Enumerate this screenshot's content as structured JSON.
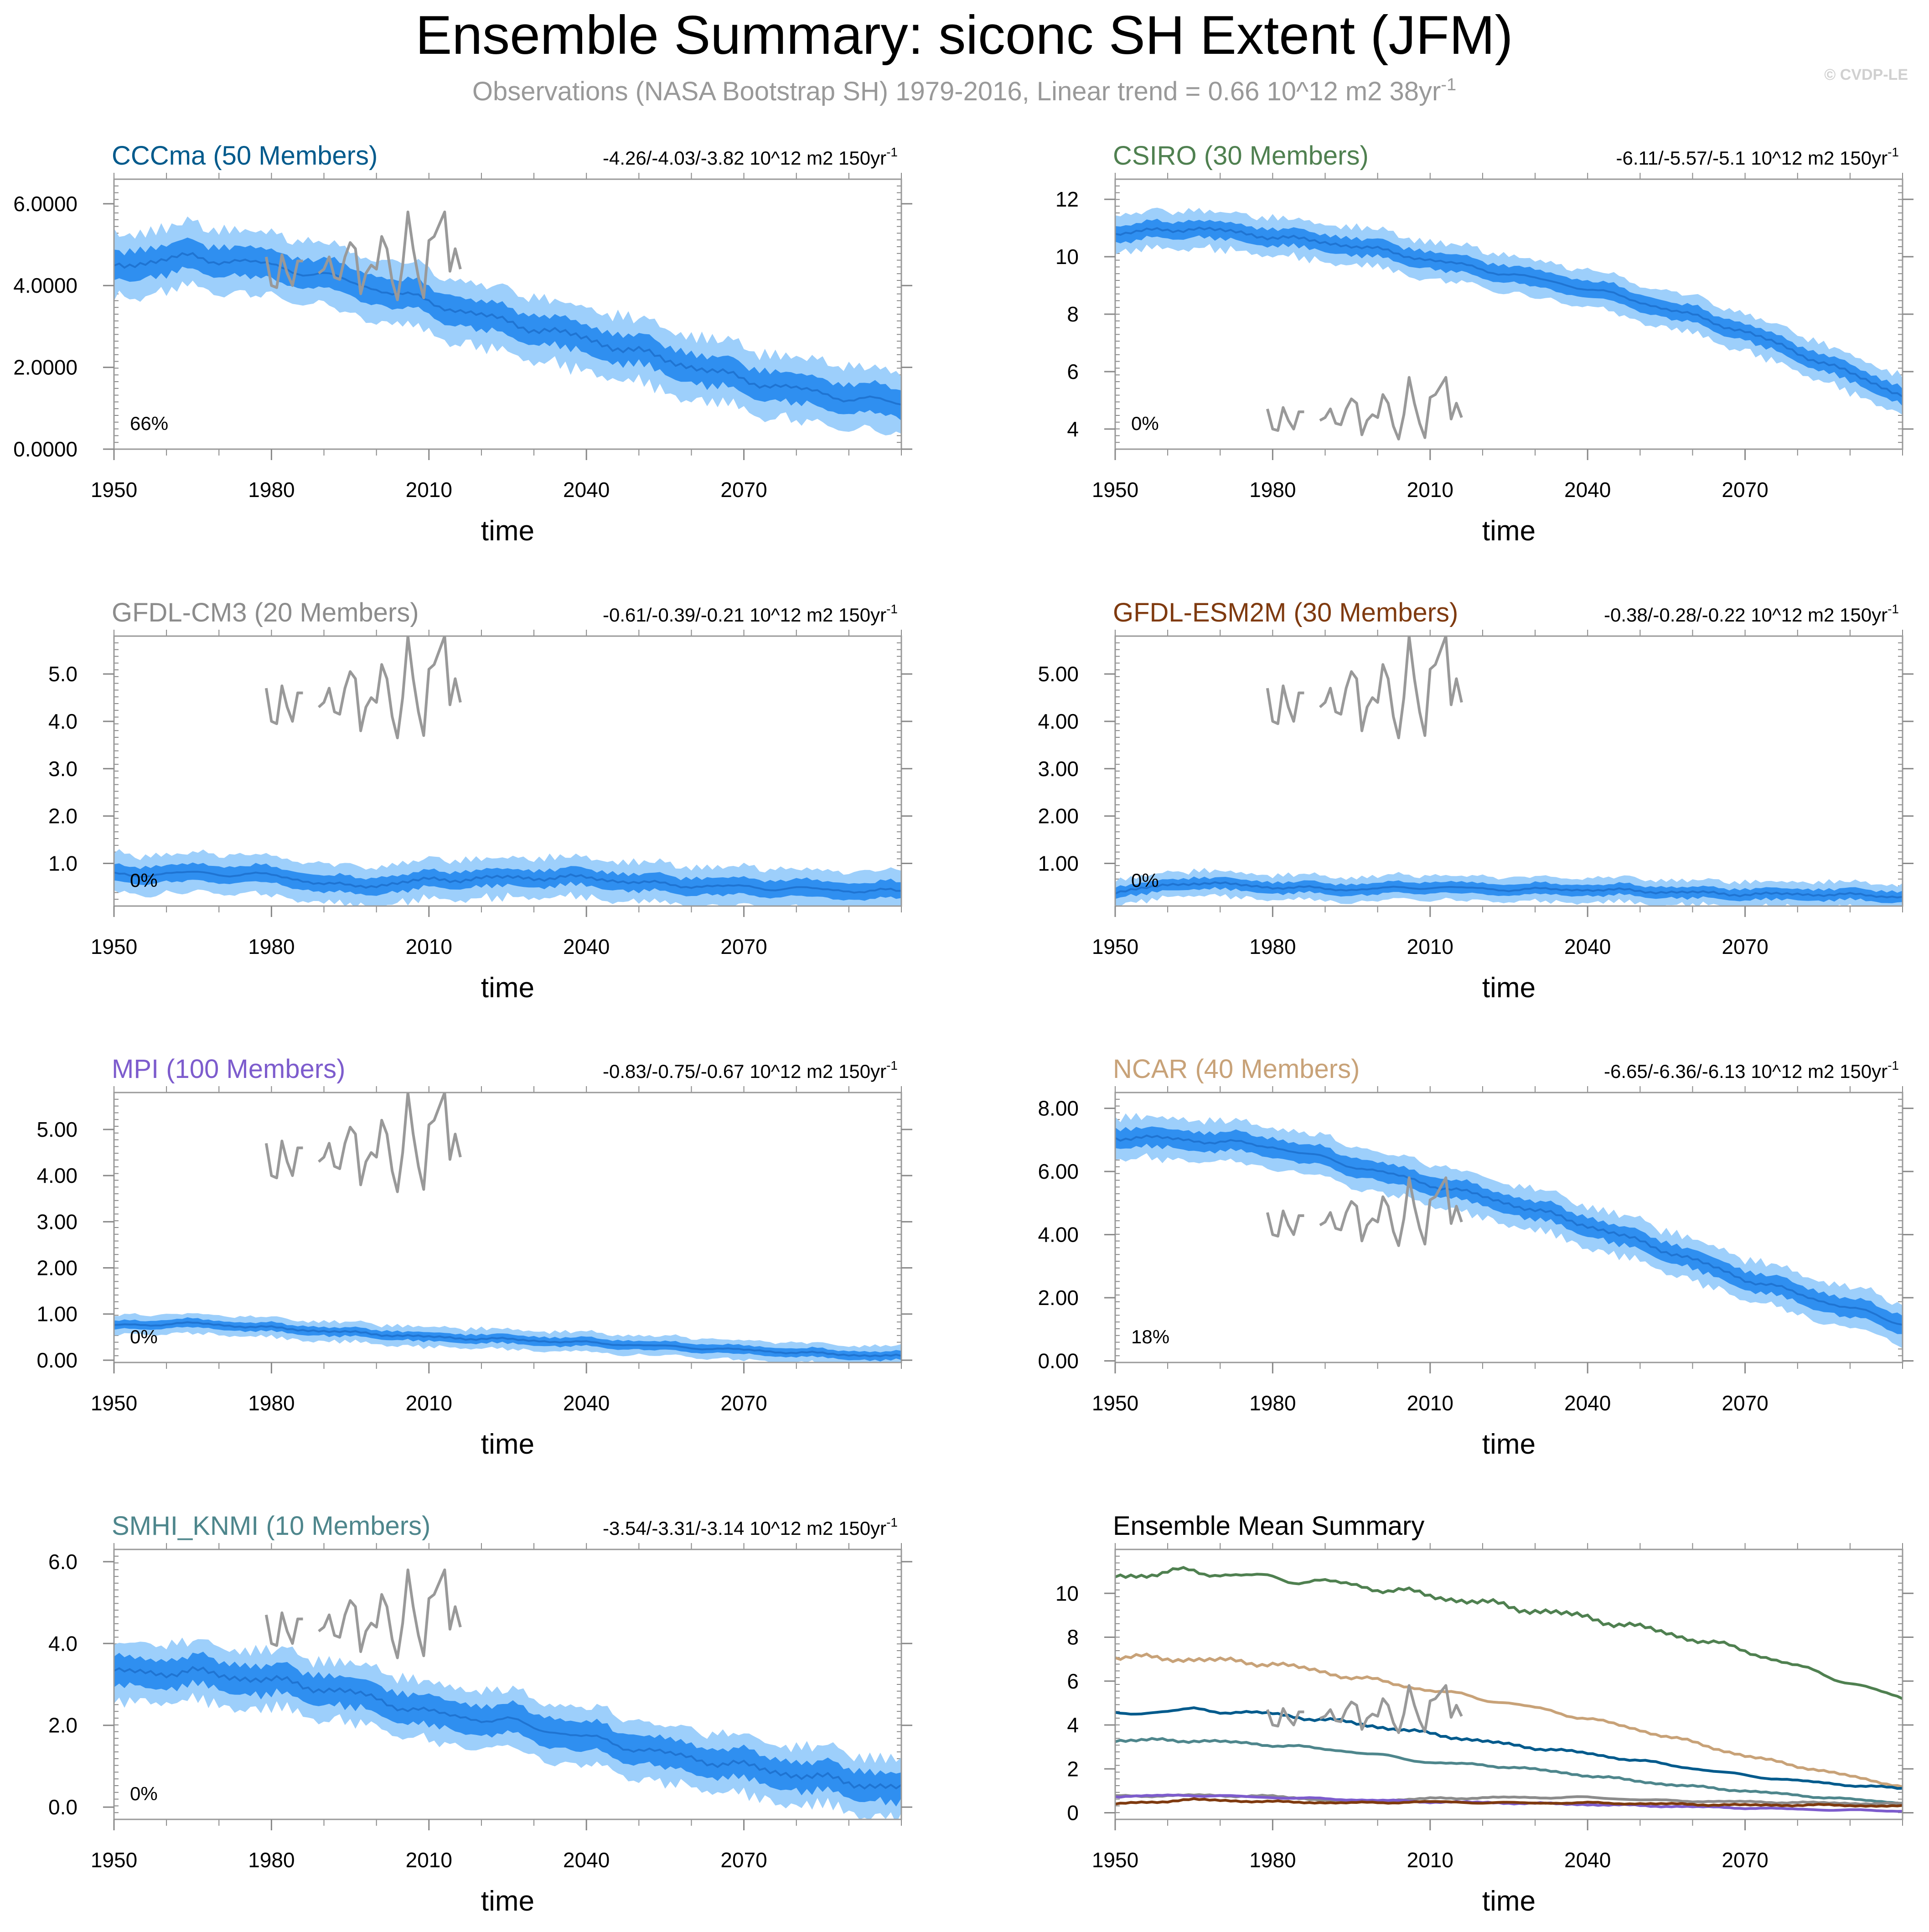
{
  "figure": {
    "title": "Ensemble Summary: siconc SH Extent (JFM)",
    "subtitle": "Observations (NASA Bootstrap SH) 1979-2016, Linear trend = 0.66 10^12 m2 38yr",
    "subtitle_sup": "-1",
    "watermark": "© CVDP-LE",
    "colors": {
      "title": "#000000",
      "subtitle": "#999999",
      "band_outer": "#9dcffb",
      "band_inner": "#2f8ff0",
      "mean_line": "#1f74d2",
      "obs_line": "#999999"
    }
  },
  "chart_data": [
    {
      "type": "area",
      "title": "CCCma (50 Members)",
      "title_color": "#005a8c",
      "trend": "-4.26/-4.03/-3.82 10^12 m2 150yr",
      "trend_sup": "-1",
      "xlabel": "time",
      "ylabel": "",
      "xlim": [
        1950,
        2100
      ],
      "ylim": [
        0,
        6.6
      ],
      "yticks": [
        0,
        2,
        4,
        6
      ],
      "ytick_labels": [
        "0.0000",
        "2.0000",
        "4.0000",
        "6.0000"
      ],
      "xticks": [
        1950,
        1980,
        2010,
        2040,
        2070
      ],
      "percent": "66%",
      "series": [
        {
          "name": "ensemble mean",
          "x": [
            1950,
            1965,
            1980,
            1995,
            2010,
            2025,
            2040,
            2055,
            2070,
            2085,
            2100
          ],
          "values": [
            4.5,
            4.7,
            4.5,
            4.1,
            3.6,
            3.1,
            2.7,
            2.2,
            1.7,
            1.35,
            1.1
          ]
        },
        {
          "name": "spread",
          "inner": 0.3,
          "outer": 0.65
        }
      ]
    },
    {
      "type": "area",
      "title": "CSIRO (30 Members)",
      "title_color": "#4f8050",
      "trend": "-6.11/-5.57/-5.1 10^12 m2 150yr",
      "trend_sup": "-1",
      "xlabel": "time",
      "ylabel": "",
      "xlim": [
        1950,
        2100
      ],
      "ylim": [
        3.3,
        12.7
      ],
      "yticks": [
        4,
        6,
        8,
        10,
        12
      ],
      "ytick_labels": [
        "4",
        "6",
        "8",
        "10",
        "12"
      ],
      "xticks": [
        1950,
        1980,
        2010,
        2040,
        2070
      ],
      "percent": "0%",
      "series": [
        {
          "name": "ensemble mean",
          "x": [
            1950,
            1965,
            1980,
            1995,
            2010,
            2025,
            2040,
            2055,
            2070,
            2085,
            2100
          ],
          "values": [
            10.8,
            11.0,
            10.7,
            10.4,
            9.9,
            9.4,
            8.9,
            8.2,
            7.4,
            6.3,
            5.2
          ]
        },
        {
          "name": "spread",
          "inner": 0.25,
          "outer": 0.55
        }
      ]
    },
    {
      "type": "area",
      "title": "GFDL-CM3 (20 Members)",
      "title_color": "#8c8c8c",
      "trend": "-0.61/-0.39/-0.21 10^12 m2 150yr",
      "trend_sup": "-1",
      "xlabel": "time",
      "ylabel": "",
      "xlim": [
        1950,
        2100
      ],
      "ylim": [
        0.1,
        5.8
      ],
      "yticks": [
        1,
        2,
        3,
        4,
        5
      ],
      "ytick_labels": [
        "1.0",
        "2.0",
        "3.0",
        "4.0",
        "5.0"
      ],
      "xticks": [
        1950,
        1980,
        2010,
        2040,
        2070
      ],
      "percent": "0%",
      "series": [
        {
          "name": "ensemble mean",
          "x": [
            1950,
            1965,
            1980,
            1995,
            2010,
            2025,
            2040,
            2055,
            2070,
            2085,
            2100
          ],
          "values": [
            0.75,
            0.8,
            0.75,
            0.5,
            0.65,
            0.7,
            0.7,
            0.55,
            0.5,
            0.45,
            0.4
          ]
        },
        {
          "name": "spread",
          "inner": 0.15,
          "outer": 0.35
        }
      ]
    },
    {
      "type": "area",
      "title": "GFDL-ESM2M (30 Members)",
      "title_color": "#7f3a0f",
      "trend": "-0.38/-0.28/-0.22 10^12 m2 150yr",
      "trend_sup": "-1",
      "xlabel": "time",
      "ylabel": "",
      "xlim": [
        1950,
        2100
      ],
      "ylim": [
        0.1,
        5.8
      ],
      "yticks": [
        1,
        2,
        3,
        4,
        5
      ],
      "ytick_labels": [
        "1.00",
        "2.00",
        "3.00",
        "4.00",
        "5.00"
      ],
      "xticks": [
        1950,
        1980,
        2010,
        2040,
        2070
      ],
      "percent": "0%",
      "series": [
        {
          "name": "ensemble mean",
          "x": [
            1950,
            1965,
            1980,
            1995,
            2010,
            2025,
            2040,
            2055,
            2070,
            2085,
            2100
          ],
          "values": [
            0.4,
            0.6,
            0.5,
            0.45,
            0.5,
            0.45,
            0.45,
            0.4,
            0.35,
            0.35,
            0.3
          ]
        },
        {
          "name": "spread",
          "inner": 0.1,
          "outer": 0.22
        }
      ]
    },
    {
      "type": "area",
      "title": "MPI (100 Members)",
      "title_color": "#7d5ccd",
      "trend": "-0.83/-0.75/-0.67 10^12 m2 150yr",
      "trend_sup": "-1",
      "xlabel": "time",
      "ylabel": "",
      "xlim": [
        1950,
        2100
      ],
      "ylim": [
        -0.05,
        5.8
      ],
      "yticks": [
        0,
        1,
        2,
        3,
        4,
        5
      ],
      "ytick_labels": [
        "0.00",
        "1.00",
        "2.00",
        "3.00",
        "4.00",
        "5.00"
      ],
      "xticks": [
        1950,
        1980,
        2010,
        2040,
        2070
      ],
      "percent": "0%",
      "series": [
        {
          "name": "ensemble mean",
          "x": [
            1950,
            1965,
            1980,
            1995,
            2010,
            2025,
            2040,
            2055,
            2070,
            2085,
            2100
          ],
          "values": [
            0.75,
            0.8,
            0.7,
            0.6,
            0.5,
            0.45,
            0.38,
            0.3,
            0.22,
            0.14,
            0.08
          ]
        },
        {
          "name": "spread",
          "inner": 0.08,
          "outer": 0.18
        }
      ]
    },
    {
      "type": "area",
      "title": "NCAR (40 Members)",
      "title_color": "#c8a278",
      "trend": "-6.65/-6.36/-6.13 10^12 m2 150yr",
      "trend_sup": "-1",
      "xlabel": "time",
      "ylabel": "",
      "xlim": [
        1950,
        2100
      ],
      "ylim": [
        -0.05,
        8.5
      ],
      "yticks": [
        0,
        2,
        4,
        6,
        8
      ],
      "ytick_labels": [
        "0.00",
        "2.00",
        "4.00",
        "6.00",
        "8.00"
      ],
      "xticks": [
        1950,
        1980,
        2010,
        2040,
        2070
      ],
      "percent": "18%",
      "series": [
        {
          "name": "ensemble mean",
          "x": [
            1950,
            1965,
            1980,
            1995,
            2010,
            2025,
            2040,
            2055,
            2070,
            2085,
            2100
          ],
          "values": [
            7.1,
            7.0,
            6.8,
            6.2,
            5.6,
            5.0,
            4.3,
            3.5,
            2.6,
            1.9,
            1.2
          ]
        },
        {
          "name": "spread",
          "inner": 0.25,
          "outer": 0.55
        }
      ]
    },
    {
      "type": "area",
      "title": "SMHI_KNMI (10 Members)",
      "title_color": "#4e868c",
      "trend": "-3.54/-3.31/-3.14 10^12 m2 150yr",
      "trend_sup": "-1",
      "xlabel": "time",
      "ylabel": "",
      "xlim": [
        1950,
        2100
      ],
      "ylim": [
        -0.3,
        6.3
      ],
      "yticks": [
        0,
        2,
        4,
        6
      ],
      "ytick_labels": [
        "0.0",
        "2.0",
        "4.0",
        "6.0"
      ],
      "xticks": [
        1950,
        1980,
        2010,
        2040,
        2070
      ],
      "percent": "0%",
      "series": [
        {
          "name": "ensemble mean",
          "x": [
            1950,
            1965,
            1980,
            1995,
            2010,
            2025,
            2040,
            2055,
            2070,
            2085,
            2100
          ],
          "values": [
            3.3,
            3.3,
            3.1,
            2.8,
            2.3,
            2.1,
            1.7,
            1.3,
            1.0,
            0.7,
            0.45
          ]
        },
        {
          "name": "spread",
          "inner": 0.3,
          "outer": 0.6
        }
      ]
    },
    {
      "type": "line",
      "title": "Ensemble Mean Summary",
      "title_color": "#000000",
      "xlabel": "time",
      "ylabel": "",
      "xlim": [
        1950,
        2100
      ],
      "ylim": [
        -0.3,
        12.0
      ],
      "yticks": [
        0,
        2,
        4,
        6,
        8,
        10
      ],
      "ytick_labels": [
        "0",
        "2",
        "4",
        "6",
        "8",
        "10"
      ],
      "xticks": [
        1950,
        1980,
        2010,
        2040,
        2070
      ],
      "series": [
        {
          "name": "CSIRO",
          "color": "#4f8050",
          "x": [
            1950,
            1965,
            1980,
            1995,
            2010,
            2025,
            2040,
            2055,
            2070,
            2085,
            2100
          ],
          "values": [
            10.8,
            11.0,
            10.7,
            10.4,
            9.9,
            9.4,
            8.9,
            8.2,
            7.4,
            6.3,
            5.2
          ]
        },
        {
          "name": "NCAR",
          "color": "#c8a278",
          "x": [
            1950,
            1965,
            1980,
            1995,
            2010,
            2025,
            2040,
            2055,
            2070,
            2085,
            2100
          ],
          "values": [
            7.1,
            7.0,
            6.8,
            6.2,
            5.6,
            5.0,
            4.3,
            3.5,
            2.6,
            1.9,
            1.2
          ]
        },
        {
          "name": "CCCma",
          "color": "#005a8c",
          "x": [
            1950,
            1965,
            1980,
            1995,
            2010,
            2025,
            2040,
            2055,
            2070,
            2085,
            2100
          ],
          "values": [
            4.5,
            4.7,
            4.5,
            4.1,
            3.6,
            3.1,
            2.7,
            2.2,
            1.7,
            1.35,
            1.1
          ]
        },
        {
          "name": "SMHI_KNMI",
          "color": "#4e868c",
          "x": [
            1950,
            1965,
            1980,
            1995,
            2010,
            2025,
            2040,
            2055,
            2070,
            2085,
            2100
          ],
          "values": [
            3.3,
            3.3,
            3.1,
            2.8,
            2.3,
            2.1,
            1.7,
            1.3,
            1.0,
            0.7,
            0.45
          ]
        },
        {
          "name": "GFDL-CM3",
          "color": "#8c8c8c",
          "x": [
            1950,
            1965,
            1980,
            1995,
            2010,
            2025,
            2040,
            2055,
            2070,
            2085,
            2100
          ],
          "values": [
            0.75,
            0.8,
            0.75,
            0.5,
            0.65,
            0.7,
            0.7,
            0.55,
            0.5,
            0.45,
            0.4
          ]
        },
        {
          "name": "MPI",
          "color": "#7d5ccd",
          "x": [
            1950,
            1965,
            1980,
            1995,
            2010,
            2025,
            2040,
            2055,
            2070,
            2085,
            2100
          ],
          "values": [
            0.75,
            0.8,
            0.7,
            0.6,
            0.5,
            0.45,
            0.38,
            0.3,
            0.22,
            0.14,
            0.08
          ]
        },
        {
          "name": "GFDL-ESM2M",
          "color": "#7f3a0f",
          "x": [
            1950,
            1965,
            1980,
            1995,
            2010,
            2025,
            2040,
            2055,
            2070,
            2085,
            2100
          ],
          "values": [
            0.4,
            0.6,
            0.5,
            0.45,
            0.5,
            0.45,
            0.45,
            0.4,
            0.35,
            0.35,
            0.3
          ]
        }
      ]
    }
  ],
  "observations": {
    "name": "Observations (NASA Bootstrap SH)",
    "segments": [
      {
        "x": [
          1979,
          1980,
          1981,
          1982,
          1983,
          1984,
          1985,
          1986
        ],
        "values": [
          4.7,
          4.0,
          3.95,
          4.75,
          4.3,
          4.0,
          4.6,
          4.6
        ]
      },
      {
        "x": [
          1989,
          1990,
          1991,
          1992,
          1993,
          1994,
          1995,
          1996,
          1997,
          1998,
          1999,
          2000,
          2001,
          2002,
          2003,
          2004,
          2005,
          2006,
          2007,
          2008,
          2009,
          2010,
          2011,
          2012,
          2013,
          2014,
          2015,
          2016
        ],
        "values": [
          4.3,
          4.4,
          4.7,
          4.2,
          4.15,
          4.7,
          5.05,
          4.9,
          3.8,
          4.3,
          4.5,
          4.4,
          5.2,
          4.9,
          4.1,
          3.65,
          4.5,
          5.8,
          4.9,
          4.2,
          3.7,
          5.1,
          5.2,
          5.5,
          5.8,
          4.35,
          4.9,
          4.4
        ]
      }
    ]
  }
}
